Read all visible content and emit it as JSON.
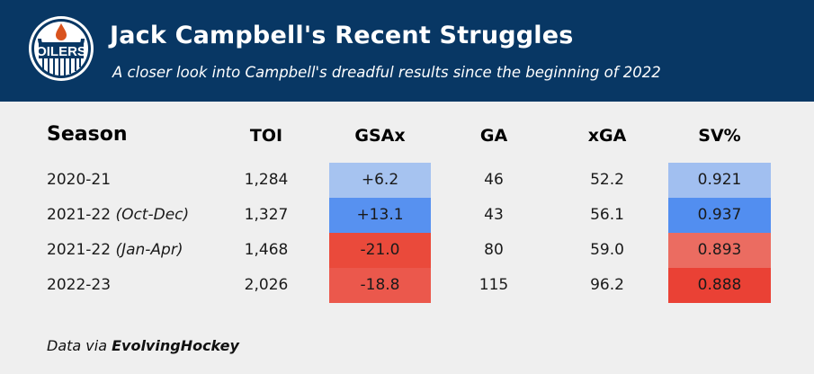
{
  "header": {
    "logo_text": "OILERS",
    "title": "Jack Campbell's Recent Struggles",
    "subtitle": "A closer look into Campbell's dreadful results since the beginning of 2022",
    "colors": {
      "header_bg": "#083764",
      "logo_orange": "#d9531e",
      "logo_navy": "#083764"
    }
  },
  "footer": {
    "prefix": "Data via ",
    "source": "EvolvingHockey"
  },
  "chart_data": {
    "type": "table",
    "title": "Jack Campbell's Recent Struggles",
    "subtitle": "A closer look into Campbell's dreadful results since the beginning of 2022",
    "columns": [
      "Season",
      "TOI",
      "GSAx",
      "GA",
      "xGA",
      "SV%"
    ],
    "rows": [
      {
        "season": "2020-21",
        "season_note": "",
        "toi": "1,284",
        "gsax": "+6.2",
        "ga": "46",
        "xga": "52.2",
        "sv": "0.921",
        "gsax_color": "#a6c3f0",
        "sv_color": "#a1bff0"
      },
      {
        "season": "2021-22",
        "season_note": "(Oct-Dec)",
        "toi": "1,327",
        "gsax": "+13.1",
        "ga": "43",
        "xga": "56.1",
        "sv": "0.937",
        "gsax_color": "#5791f0",
        "sv_color": "#528ef0"
      },
      {
        "season": "2021-22",
        "season_note": "(Jan-Apr)",
        "toi": "1,468",
        "gsax": "-21.0",
        "ga": "80",
        "xga": "59.0",
        "sv": "0.893",
        "gsax_color": "#ea4a3b",
        "sv_color": "#eb6c61"
      },
      {
        "season": "2022-23",
        "season_note": "",
        "toi": "2,026",
        "gsax": "-18.8",
        "ga": "115",
        "xga": "96.2",
        "sv": "0.888",
        "gsax_color": "#eb584c",
        "sv_color": "#ea4135"
      }
    ],
    "numeric": {
      "toi": [
        1284,
        1327,
        1468,
        2026
      ],
      "gsax": [
        6.2,
        13.1,
        -21.0,
        -18.8
      ],
      "ga": [
        46,
        43,
        80,
        115
      ],
      "xga": [
        52.2,
        56.1,
        59.0,
        96.2
      ],
      "sv_pct": [
        0.921,
        0.937,
        0.893,
        0.888
      ]
    },
    "source": "Data via EvolvingHockey"
  }
}
